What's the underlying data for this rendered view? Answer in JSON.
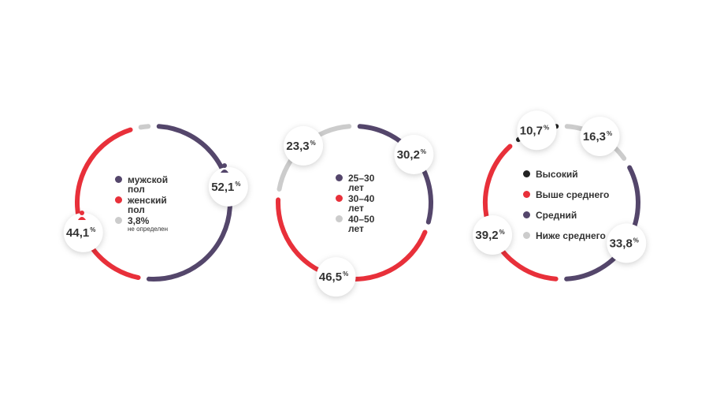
{
  "chart_data": [
    {
      "type": "pie",
      "donut": true,
      "unit": "%",
      "categories": [
        "мужской пол",
        "женский пол",
        "не определен"
      ],
      "values": [
        52.1,
        44.1,
        3.8
      ],
      "value_labels": [
        "52,1",
        "44,1",
        "3,8%"
      ],
      "colors": [
        "#54466b",
        "#e8303a",
        "#cccccc"
      ]
    },
    {
      "type": "pie",
      "donut": true,
      "unit": "%",
      "categories": [
        "25–30 лет",
        "30–40 лет",
        "40–50 лет"
      ],
      "values": [
        30.2,
        46.5,
        23.3
      ],
      "value_labels": [
        "30,2",
        "46,5",
        "23,3"
      ],
      "colors": [
        "#54466b",
        "#e8303a",
        "#cccccc"
      ]
    },
    {
      "type": "pie",
      "donut": true,
      "unit": "%",
      "categories": [
        "Высокий",
        "Выше среднего",
        "Средний",
        "Ниже среднего"
      ],
      "values": [
        10.7,
        39.2,
        33.8,
        16.3
      ],
      "value_labels": [
        "10,7",
        "39,2",
        "33,8",
        "16,3"
      ],
      "colors": [
        "#222222",
        "#e8303a",
        "#54466b",
        "#cccccc"
      ]
    }
  ]
}
